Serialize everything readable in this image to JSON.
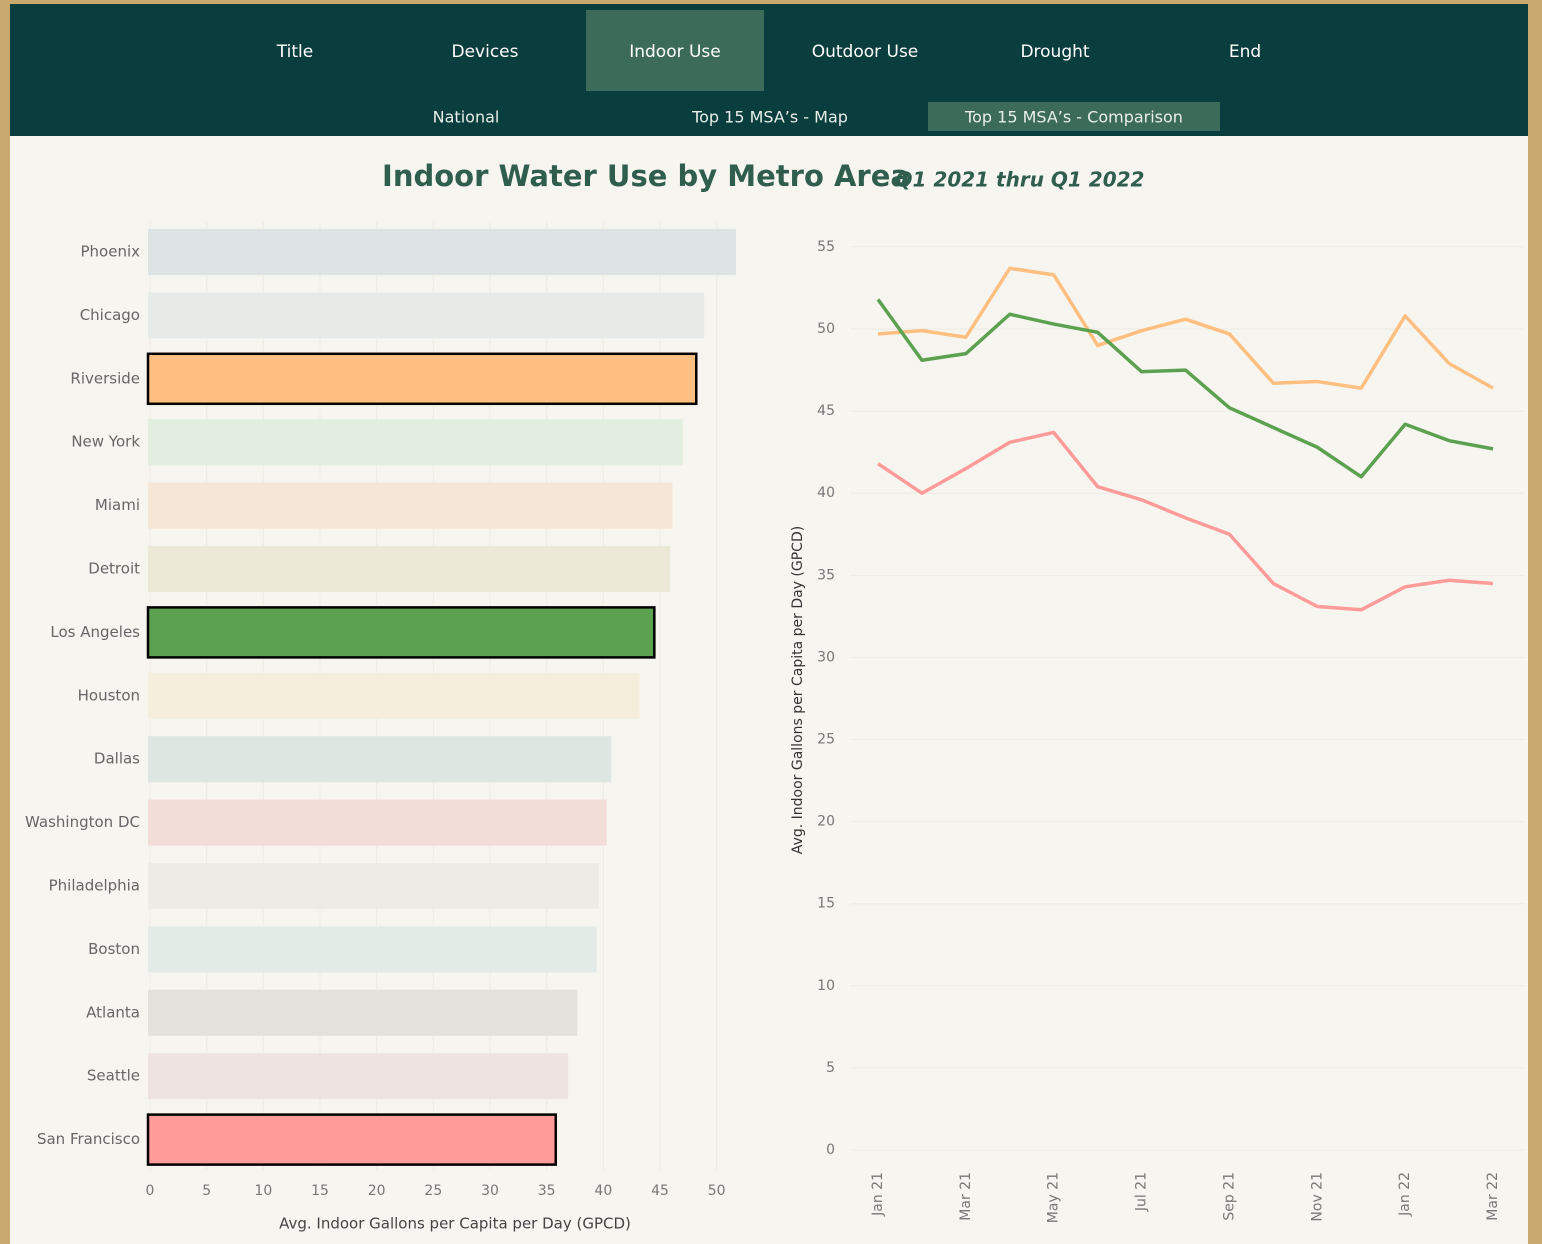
{
  "nav": {
    "tabs": [
      "Title",
      "Devices",
      "Indoor Use",
      "Outdoor Use",
      "Drought",
      "End"
    ],
    "active": 2,
    "subtabs": [
      "National",
      "Top 15 MSA’s - Map",
      "Top 15 MSA’s - Comparison"
    ],
    "subactive": 2
  },
  "header": {
    "title": "Indoor Water Use by Metro Area",
    "subtitle": "Q1 2021 thru Q1 2022"
  },
  "chart_data": [
    {
      "type": "bar",
      "orientation": "horizontal",
      "categories": [
        "Phoenix",
        "Chicago",
        "Riverside",
        "New York",
        "Miami",
        "Detroit",
        "Los Angeles",
        "Houston",
        "Dallas",
        "Washington DC",
        "Philadelphia",
        "Boston",
        "Atlanta",
        "Seattle",
        "San Francisco"
      ],
      "values": [
        51.7,
        48.9,
        48.2,
        47.0,
        46.1,
        45.9,
        44.5,
        43.2,
        40.7,
        40.3,
        39.6,
        39.4,
        37.7,
        36.9,
        35.8
      ],
      "colors": [
        "#dde3e3",
        "#e6ebe8",
        "#ffbf80",
        "#e2eedf",
        "#f5e6d6",
        "#ebe8d6",
        "#5ba150",
        "#f5eedc",
        "#dde6e1",
        "#f3ddd9",
        "#ecebe5",
        "#e3ebe6",
        "#e2e1dc",
        "#efe3e2",
        "#ff9b99"
      ],
      "outlined": [
        false,
        false,
        true,
        false,
        false,
        false,
        true,
        false,
        false,
        false,
        false,
        false,
        false,
        false,
        true
      ],
      "xlim": [
        0,
        54
      ],
      "xticks": [
        0,
        5,
        10,
        15,
        20,
        25,
        30,
        35,
        40,
        45,
        50
      ],
      "xlabel": "Avg. Indoor Gallons per Capita per Day (GPCD)",
      "grid": true
    },
    {
      "type": "line",
      "categories": [
        "Jan 21",
        null,
        "Mar 21",
        null,
        "May 21",
        null,
        "Jul 21",
        null,
        "Sep 21",
        null,
        "Nov 21",
        null,
        "Jan 22",
        null,
        "Mar 22"
      ],
      "series": [
        {
          "color": "#ffbf80",
          "values": [
            49.7,
            49.9,
            49.5,
            53.7,
            53.3,
            49.0,
            49.9,
            50.6,
            49.7,
            46.7,
            46.8,
            46.4,
            50.8,
            47.9,
            46.4
          ]
        },
        {
          "color": "#5ba150",
          "values": [
            51.8,
            48.1,
            48.5,
            50.9,
            50.3,
            49.8,
            47.4,
            47.5,
            45.2,
            44.0,
            42.8,
            41.0,
            44.2,
            43.2,
            42.7
          ]
        },
        {
          "color": "#ff9b99",
          "values": [
            41.8,
            40.0,
            41.5,
            43.1,
            43.7,
            40.4,
            39.6,
            38.5,
            37.5,
            34.5,
            33.1,
            32.9,
            34.3,
            34.7,
            34.5
          ]
        }
      ],
      "ylim": [
        0,
        56
      ],
      "yticks": [
        0,
        5,
        10,
        15,
        20,
        25,
        30,
        35,
        40,
        45,
        50,
        55
      ],
      "ylabel": "Avg. Indoor Gallons per Capita per Day (GPCD)",
      "grid": true
    }
  ]
}
